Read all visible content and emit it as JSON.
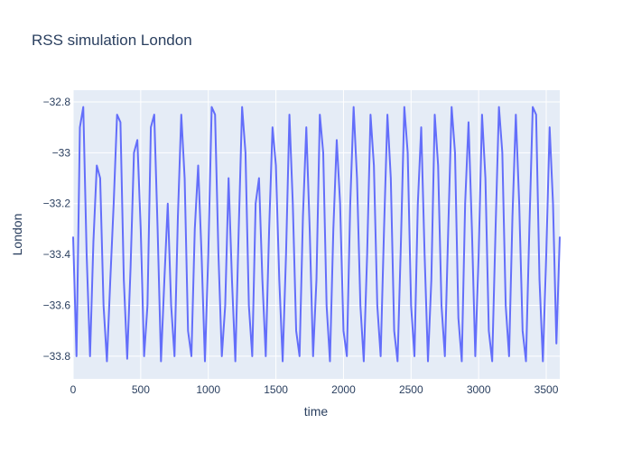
{
  "chart_data": {
    "type": "line",
    "title": "RSS simulation London",
    "x_label": "time",
    "y_label": "London",
    "xlim": [
      0,
      3600
    ],
    "ylim": [
      -33.889,
      -32.754
    ],
    "xticks": [
      0,
      500,
      1000,
      1500,
      2000,
      2500,
      3000,
      3500
    ],
    "yticks": [
      {
        "value": -33.8,
        "label": "−33.8"
      },
      {
        "value": -33.6,
        "label": "−33.6"
      },
      {
        "value": -33.4,
        "label": "−33.4"
      },
      {
        "value": -33.2,
        "label": "−33.2"
      },
      {
        "value": -33,
        "label": "−33"
      },
      {
        "value": -32.8,
        "label": "−32.8"
      }
    ],
    "grid": true,
    "x": [
      0,
      25,
      50,
      75,
      100,
      125,
      150,
      175,
      200,
      225,
      250,
      275,
      300,
      325,
      350,
      375,
      400,
      425,
      450,
      475,
      500,
      525,
      550,
      575,
      600,
      625,
      650,
      675,
      700,
      725,
      750,
      775,
      800,
      825,
      850,
      875,
      900,
      925,
      950,
      975,
      1000,
      1025,
      1050,
      1075,
      1100,
      1125,
      1150,
      1175,
      1200,
      1225,
      1250,
      1275,
      1300,
      1325,
      1350,
      1375,
      1400,
      1425,
      1450,
      1475,
      1500,
      1525,
      1550,
      1575,
      1600,
      1625,
      1650,
      1675,
      1700,
      1725,
      1750,
      1775,
      1800,
      1825,
      1850,
      1875,
      1900,
      1925,
      1950,
      1975,
      2000,
      2025,
      2050,
      2075,
      2100,
      2125,
      2150,
      2175,
      2200,
      2225,
      2250,
      2275,
      2300,
      2325,
      2350,
      2375,
      2400,
      2425,
      2450,
      2475,
      2500,
      2525,
      2550,
      2575,
      2600,
      2625,
      2650,
      2675,
      2700,
      2725,
      2750,
      2775,
      2800,
      2825,
      2850,
      2875,
      2900,
      2925,
      2950,
      2975,
      3000,
      3025,
      3050,
      3075,
      3100,
      3125,
      3150,
      3175,
      3200,
      3225,
      3250,
      3275,
      3300,
      3325,
      3350,
      3375,
      3400,
      3425,
      3450,
      3475,
      3500,
      3525,
      3550,
      3575,
      3600
    ],
    "series": [
      {
        "name": "London",
        "color": "#636efa",
        "values": [
          -33.33,
          -33.8,
          -32.9,
          -32.82,
          -33.4,
          -33.8,
          -33.35,
          -33.05,
          -33.1,
          -33.6,
          -33.82,
          -33.5,
          -33.2,
          -32.85,
          -32.88,
          -33.5,
          -33.81,
          -33.45,
          -33.0,
          -32.95,
          -33.3,
          -33.8,
          -33.6,
          -32.9,
          -32.85,
          -33.3,
          -33.82,
          -33.5,
          -33.2,
          -33.6,
          -33.8,
          -33.25,
          -32.85,
          -33.1,
          -33.7,
          -33.8,
          -33.3,
          -33.05,
          -33.4,
          -33.82,
          -33.4,
          -32.82,
          -32.85,
          -33.4,
          -33.8,
          -33.6,
          -33.1,
          -33.5,
          -33.82,
          -33.3,
          -32.82,
          -33.0,
          -33.6,
          -33.8,
          -33.2,
          -33.1,
          -33.5,
          -33.8,
          -33.3,
          -32.9,
          -33.05,
          -33.5,
          -33.82,
          -33.4,
          -32.85,
          -33.2,
          -33.7,
          -33.8,
          -33.25,
          -32.9,
          -33.3,
          -33.8,
          -33.5,
          -32.85,
          -33.0,
          -33.6,
          -33.82,
          -33.3,
          -32.95,
          -33.2,
          -33.7,
          -33.8,
          -33.2,
          -32.82,
          -33.1,
          -33.6,
          -33.82,
          -33.4,
          -32.85,
          -33.05,
          -33.6,
          -33.8,
          -33.3,
          -32.85,
          -33.1,
          -33.7,
          -33.82,
          -33.35,
          -32.82,
          -33.0,
          -33.6,
          -33.8,
          -33.2,
          -32.9,
          -33.4,
          -33.82,
          -33.5,
          -32.85,
          -33.05,
          -33.6,
          -33.8,
          -33.3,
          -32.82,
          -33.0,
          -33.65,
          -33.82,
          -33.2,
          -32.88,
          -33.3,
          -33.8,
          -33.4,
          -32.85,
          -33.1,
          -33.7,
          -33.82,
          -33.3,
          -32.82,
          -33.0,
          -33.6,
          -33.8,
          -33.25,
          -32.85,
          -33.2,
          -33.7,
          -33.82,
          -33.3,
          -32.82,
          -32.85,
          -33.5,
          -33.82,
          -33.4,
          -32.9,
          -33.2,
          -33.75,
          -33.33
        ]
      }
    ]
  }
}
